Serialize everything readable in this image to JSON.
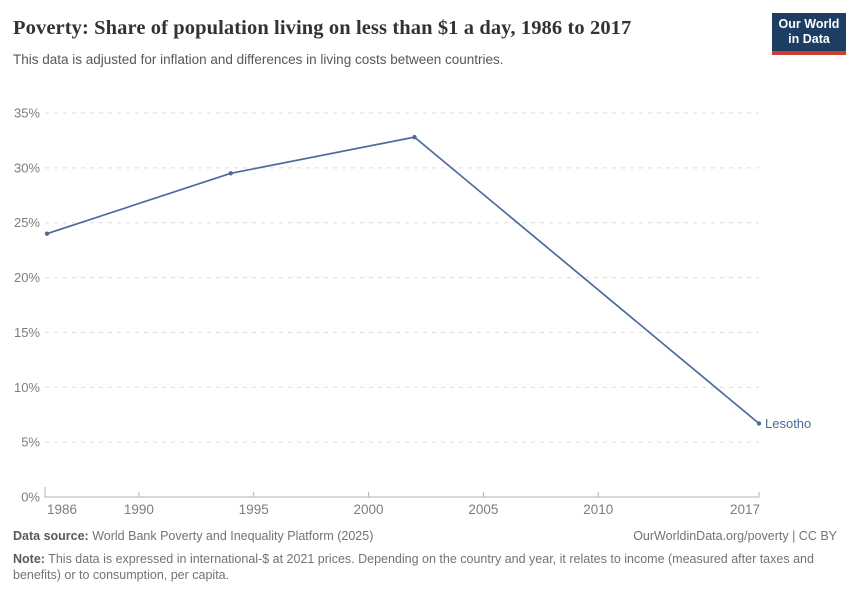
{
  "header": {
    "title": "Poverty: Share of population living on less than $1 a day, 1986 to 2017",
    "subtitle": "This data is adjusted for inflation and differences in living costs between countries."
  },
  "logo": {
    "line1": "Our World",
    "line2": "in Data",
    "bg_color": "#1d3d63",
    "bar_color": "#cf3d34"
  },
  "chart_data": {
    "type": "line",
    "title": "Poverty: Share of population living on less than $1 a day, 1986 to 2017",
    "xlabel": "",
    "ylabel": "",
    "xlim": [
      1986,
      2017
    ],
    "ylim": [
      0,
      35
    ],
    "xticks": [
      1986,
      1990,
      1995,
      2000,
      2005,
      2010,
      2017
    ],
    "yticks": [
      0,
      5,
      10,
      15,
      20,
      25,
      30,
      35
    ],
    "ytick_suffix": "%",
    "grid": "horizontal dashed",
    "legend_position": "end-of-line label",
    "series": [
      {
        "name": "Lesotho",
        "color": "#4c6a9c",
        "x": [
          1986,
          1994,
          2002,
          2017
        ],
        "values": [
          24.0,
          29.5,
          32.8,
          6.7
        ]
      }
    ]
  },
  "footer": {
    "datasource_label": "Data source:",
    "datasource_text": "World Bank Poverty and Inequality Platform (2025)",
    "link_text": "OurWorldinData.org/poverty | CC BY",
    "note_label": "Note:",
    "note_text": "This data is expressed in international-$ at 2021 prices. Depending on the country and year, it relates to income (measured after taxes and benefits) or to consumption, per capita."
  },
  "colors": {
    "line": "#4c6a9c",
    "grid": "#dcdcdc",
    "axis": "#b3b3b3",
    "tick_text": "#7d7d7d"
  }
}
